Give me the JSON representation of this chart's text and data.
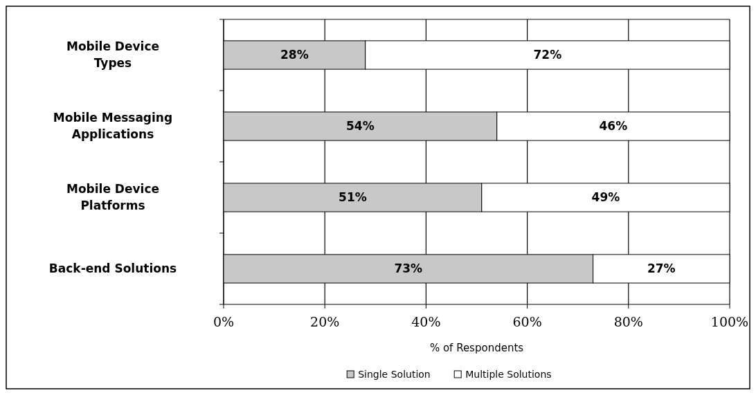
{
  "chart_data": {
    "type": "bar",
    "orientation": "horizontal",
    "stacked": true,
    "categories": [
      "Mobile Device Types",
      "Mobile Messaging Applications",
      "Mobile Device Platforms",
      "Back-end Solutions"
    ],
    "series": [
      {
        "name": "Single Solution",
        "color": "#c8c8c8",
        "values": [
          28,
          54,
          51,
          73
        ],
        "value_labels": [
          "28%",
          "54%",
          "51%",
          "73%"
        ]
      },
      {
        "name": "Multiple Solutions",
        "color": "#ffffff",
        "values": [
          72,
          46,
          49,
          27
        ],
        "value_labels": [
          "72%",
          "46%",
          "49%",
          "27%"
        ]
      }
    ],
    "xlim": [
      0,
      100
    ],
    "xticks": [
      {
        "value": 0,
        "label": "0%"
      },
      {
        "value": 20,
        "label": "20%"
      },
      {
        "value": 40,
        "label": "40%"
      },
      {
        "value": 60,
        "label": "60%"
      },
      {
        "value": 80,
        "label": "80%"
      },
      {
        "value": 100,
        "label": "100%"
      }
    ],
    "xlabel": "% of Respondents",
    "grid": "x",
    "legend": "bottom"
  }
}
